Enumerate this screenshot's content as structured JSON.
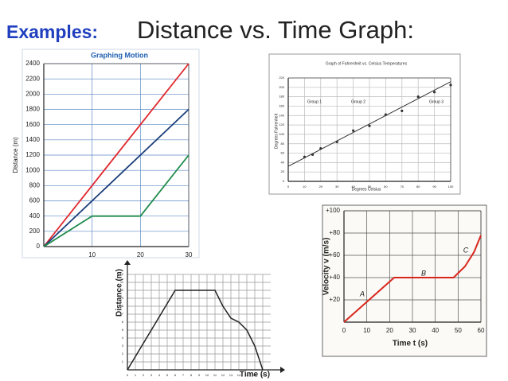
{
  "header": {
    "label": "Examples:",
    "title": "Distance vs. Time Graph:"
  },
  "chart_data": [
    {
      "type": "line",
      "title": "Graphing Motion",
      "ylabel": "Distance (m)",
      "xlim": [
        0,
        30
      ],
      "xticks": [
        10,
        20,
        30
      ],
      "ylim": [
        0,
        2400
      ],
      "yticks": [
        0,
        200,
        400,
        600,
        800,
        1000,
        1200,
        1400,
        1600,
        1800,
        2000,
        2200,
        2400
      ],
      "grid": true,
      "series": [
        {
          "color": "#e0282e",
          "x": [
            0,
            30
          ],
          "values": [
            0,
            2400
          ]
        },
        {
          "color": "#1a3d7a",
          "x": [
            0,
            30
          ],
          "values": [
            0,
            1800
          ]
        },
        {
          "color": "#1e8a4a",
          "x": [
            0,
            10,
            20,
            30
          ],
          "values": [
            0,
            400,
            400,
            1200
          ]
        }
      ]
    },
    {
      "type": "scatter",
      "title": "Graph of Fahrenheit vs. Celsius Temperatures",
      "xlabel": "Degrees Celsius",
      "ylabel": "Degrees Fahrenheit",
      "xlim": [
        0,
        100
      ],
      "xticks": [
        0,
        10,
        20,
        30,
        40,
        50,
        60,
        70,
        80,
        90,
        100
      ],
      "ylim": [
        0,
        220
      ],
      "yticks": [
        0,
        20,
        40,
        60,
        80,
        100,
        120,
        140,
        160,
        180,
        200,
        220
      ],
      "grid": true,
      "annotations": [
        "Group 1",
        "Group 2",
        "Group 3"
      ],
      "series": [
        {
          "type": "line",
          "color": "#333333",
          "x": [
            0,
            100
          ],
          "values": [
            32,
            212
          ]
        },
        {
          "color": "#333333",
          "x": [
            10,
            15,
            20,
            30,
            40,
            50,
            60,
            70,
            80,
            90,
            100
          ],
          "values": [
            52,
            57,
            70,
            84,
            108,
            118,
            142,
            150,
            180,
            190,
            205
          ]
        }
      ]
    },
    {
      "type": "line",
      "xlabel": "Time t (s)",
      "ylabel": "Velocity v (m/s)",
      "xlim": [
        0,
        60
      ],
      "xticks": [
        0,
        10,
        20,
        30,
        40,
        50,
        60
      ],
      "ylim": [
        0,
        100
      ],
      "yticks": [
        {
          "value": 20,
          "label": "+20"
        },
        {
          "value": 40,
          "label": "+40"
        },
        {
          "value": 60,
          "label": "+60"
        },
        {
          "value": 80,
          "label": "+80"
        },
        {
          "value": 100,
          "label": "+100"
        }
      ],
      "grid": true,
      "annotations": [
        "A",
        "B",
        "C"
      ],
      "series": [
        {
          "color": "#d9261c",
          "x": [
            0,
            22,
            48,
            53,
            57,
            60
          ],
          "values": [
            0,
            40,
            40,
            50,
            63,
            78
          ]
        }
      ]
    },
    {
      "type": "line",
      "xlabel": "Time (s)",
      "ylabel": "Distance (m)",
      "xlim": [
        0,
        18
      ],
      "xticks": [
        0,
        1,
        2,
        3,
        4,
        5,
        6,
        7,
        8,
        9,
        10,
        11,
        12,
        13,
        14,
        15,
        16,
        17
      ],
      "ylim": [
        0,
        12
      ],
      "yticks": [
        1,
        2,
        3,
        4,
        5,
        6,
        7,
        8,
        9,
        10,
        11,
        12
      ],
      "grid": true,
      "series": [
        {
          "color": "#222222",
          "x": [
            0,
            6,
            11,
            12,
            13,
            14,
            15,
            16,
            17
          ],
          "values": [
            0,
            10,
            10,
            8,
            6.5,
            6,
            5,
            3,
            0
          ]
        }
      ]
    }
  ]
}
